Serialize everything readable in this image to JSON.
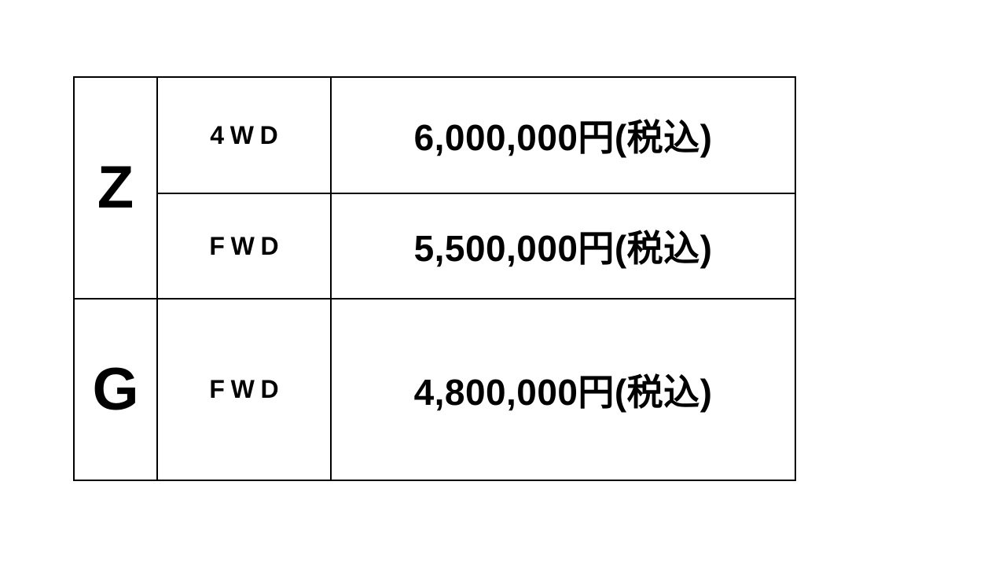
{
  "table": {
    "description": "vehicle-grade-price-table",
    "columns": [
      "grade",
      "drivetrain",
      "price"
    ],
    "groups": [
      {
        "grade": "Z",
        "rows": [
          {
            "drivetrain": "4WD",
            "price": "6,000,000円(税込)"
          },
          {
            "drivetrain": "FWD",
            "price": "5,500,000円(税込)"
          }
        ]
      },
      {
        "grade": "G",
        "rows": [
          {
            "drivetrain": "FWD",
            "price": "4,800,000円(税込)"
          }
        ]
      }
    ],
    "colors": {
      "border": "#000000",
      "text": "#000000",
      "background": "#ffffff"
    }
  }
}
